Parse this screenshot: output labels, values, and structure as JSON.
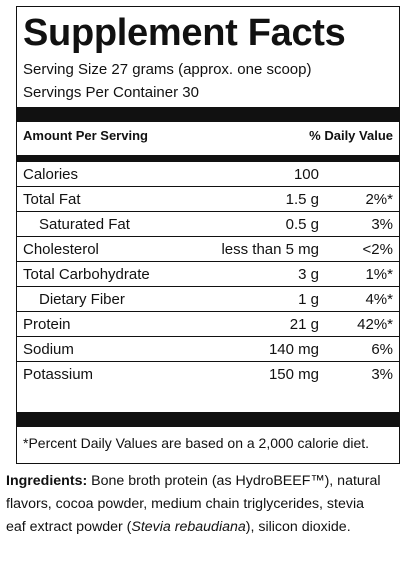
{
  "panel": {
    "title": "Supplement Facts",
    "serving_size": "Serving Size 27 grams (approx. one scoop)",
    "servings_per_container": "Servings Per Container 30",
    "amount_header": "Amount Per Serving",
    "dv_header": "% Daily Value",
    "rows": [
      {
        "name": "Calories",
        "amount": "100",
        "dv": ""
      },
      {
        "name": "Total Fat",
        "amount": "1.5 g",
        "dv": "2%*"
      },
      {
        "name": "Saturated Fat",
        "amount": "0.5 g",
        "dv": "3%"
      },
      {
        "name": "Cholesterol",
        "amount": "less than 5 mg",
        "dv": "<2%"
      },
      {
        "name": "Total Carbohydrate",
        "amount": "3 g",
        "dv": "1%*"
      },
      {
        "name": "Dietary Fiber",
        "amount": "1 g",
        "dv": "4%*"
      },
      {
        "name": "Protein",
        "amount": "21 g",
        "dv": "42%*"
      },
      {
        "name": "Sodium",
        "amount": "140 mg",
        "dv": "6%"
      },
      {
        "name": "Potassium",
        "amount": "150 mg",
        "dv": "3%"
      }
    ],
    "footnote": "*Percent Daily Values are based on a 2,000 calorie diet."
  },
  "ingredients": {
    "label": "Ingredients:",
    "line1": "Bone broth protein (as HydroBEEF™), natural",
    "line2": "flavors, cocoa powder, medium chain triglycerides, stevia",
    "line3_before": "eaf extract powder (",
    "line3_italic": "Stevia rebaudiana",
    "line3_after": "), silicon dioxide."
  }
}
